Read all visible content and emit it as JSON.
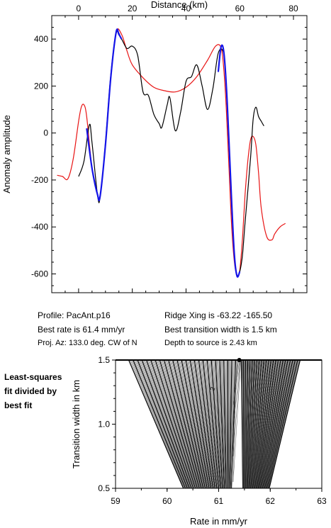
{
  "chart_data": [
    {
      "type": "line",
      "title": "",
      "xlabel": "Distance (km)",
      "ylabel": "Anomaly amplitude",
      "xlim": [
        -10,
        85
      ],
      "ylim": [
        -680,
        500
      ],
      "xticks": [
        0,
        20,
        40,
        60,
        80
      ],
      "yticks": [
        -600,
        -400,
        -200,
        0,
        200,
        400
      ],
      "grid": false,
      "series": [
        {
          "role": "observed",
          "color": "#000000",
          "x": [
            0,
            2,
            4,
            5,
            7,
            8,
            10,
            12,
            14,
            16,
            18,
            20,
            22,
            24,
            26,
            28,
            30,
            31,
            33,
            34,
            36,
            38,
            40,
            42,
            44,
            46,
            48,
            50,
            52,
            54,
            55,
            56,
            57,
            58,
            59,
            60,
            61,
            62,
            64,
            65,
            66,
            67,
            68,
            69
          ],
          "y": [
            -185,
            -120,
            35,
            -40,
            -260,
            -275,
            -40,
            250,
            425,
            400,
            360,
            370,
            330,
            175,
            160,
            80,
            40,
            25,
            120,
            150,
            10,
            90,
            220,
            240,
            290,
            200,
            100,
            190,
            340,
            340,
            200,
            -50,
            -300,
            -520,
            -605,
            -590,
            -520,
            -380,
            -110,
            60,
            110,
            70,
            50,
            30
          ]
        },
        {
          "role": "model",
          "color": "#e81414",
          "x": [
            -8,
            -6,
            -4,
            -2,
            0,
            1,
            2,
            3,
            5,
            7,
            8,
            10,
            12,
            14,
            16,
            18,
            20,
            24,
            28,
            32,
            36,
            40,
            44,
            48,
            51,
            53,
            54,
            55,
            56,
            57,
            58,
            59,
            60,
            61,
            62,
            63,
            64,
            65,
            66,
            67,
            68,
            70,
            72,
            73,
            75,
            77
          ],
          "y": [
            -180,
            -185,
            -195,
            -110,
            50,
            110,
            120,
            70,
            -150,
            -260,
            -270,
            -50,
            240,
            430,
            420,
            350,
            290,
            235,
            195,
            180,
            175,
            195,
            240,
            310,
            370,
            365,
            280,
            100,
            -150,
            -400,
            -550,
            -605,
            -585,
            -450,
            -260,
            -120,
            -30,
            -15,
            -50,
            -170,
            -320,
            -440,
            -455,
            -430,
            -400,
            -385
          ]
        },
        {
          "role": "best-fit segment",
          "color": "#1414e8",
          "x": [
            3,
            5,
            7,
            8,
            10,
            12,
            14,
            15,
            16
          ],
          "y": [
            20,
            -150,
            -260,
            -270,
            -50,
            240,
            430,
            420,
            400
          ]
        },
        {
          "role": "best-fit segment",
          "color": "#1414e8",
          "x": [
            52,
            53,
            54,
            55,
            56,
            57,
            58,
            59,
            60
          ],
          "y": [
            260,
            365,
            350,
            200,
            -40,
            -300,
            -520,
            -610,
            -590
          ]
        }
      ]
    },
    {
      "type": "heatmap",
      "title": "",
      "xlabel": "Rate in mm/yr",
      "ylabel": "Transition width in km",
      "xlim": [
        59,
        63
      ],
      "ylim": [
        0.5,
        1.5
      ],
      "xticks": [
        59,
        60,
        61,
        62,
        63
      ],
      "yticks": [
        0.5,
        1.0,
        1.5
      ],
      "tick_labels_x": [
        "59",
        "60",
        "61",
        "62",
        "63"
      ],
      "tick_labels_y": [
        "0.5",
        "1.0",
        "1.5"
      ],
      "best_point": {
        "x": 61.4,
        "y": 1.5
      },
      "contour_label": "2"
    }
  ],
  "info": {
    "profile": "Profile: PacAnt.p16",
    "best_rate": "Best rate is 61.4 mm/yr",
    "proj_az": "Proj. Az: 133.0 deg. CW of N",
    "ridge_xing": "Ridge Xing is -63.22 -165.50",
    "best_width": "Best transition width is 1.5 km",
    "depth": "Depth to source is   2.43 km"
  },
  "side_note": [
    "Least-squares",
    "fit divided by",
    "best fit"
  ]
}
